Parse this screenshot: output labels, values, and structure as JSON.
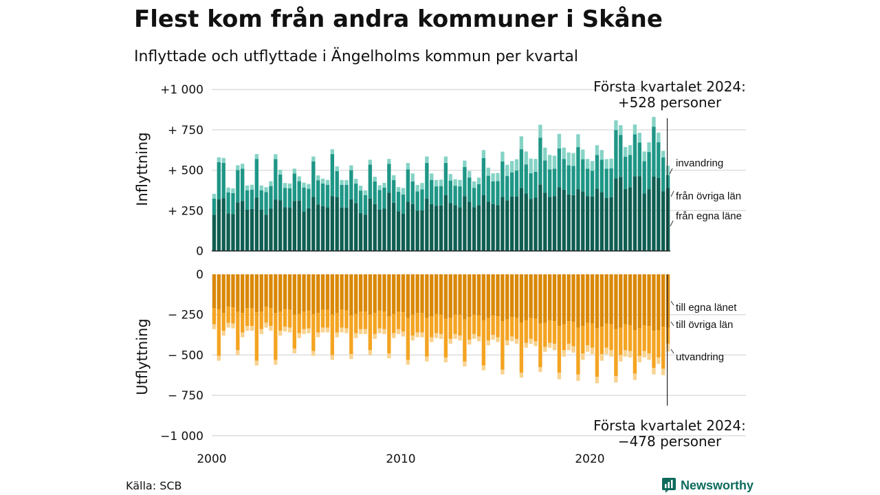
{
  "title": "Flest kom från andra kommuner i Skåne",
  "subtitle": "Inflyttade och utflyttade i Ängelholms kommun per kvartal",
  "source": "Källa: SCB",
  "brand": {
    "name": "Newsworthy",
    "icon": "newsworthy-logo-icon"
  },
  "colors": {
    "in_own": "#0f5e52",
    "in_other": "#1e9686",
    "in_immig": "#86d3c6",
    "out_own": "#d98807",
    "out_other": "#f4a422",
    "out_emig": "#f8d28f",
    "grid": "#dddddd",
    "text": "#111111"
  },
  "chart_data": {
    "type": "bar",
    "stacked": true,
    "x_start": [
      2000,
      1
    ],
    "x_ticks": [
      "2000",
      "2010",
      "2020"
    ],
    "grid": true,
    "top_panel": {
      "ylabel": "Inflyttning",
      "ylim": [
        0,
        1000
      ],
      "yticks": [
        "0",
        "+ 250",
        "+ 500",
        "+ 750",
        "+1 000"
      ],
      "annotation": [
        "Första kvartalet 2024:",
        "+528 personer"
      ],
      "series": [
        {
          "name": "från egna läne",
          "values": [
            224,
            320,
            326,
            233,
            228,
            301,
            310,
            256,
            260,
            330,
            256,
            225,
            262,
            319,
            313,
            271,
            268,
            310,
            312,
            243,
            265,
            335,
            288,
            278,
            270,
            340,
            334,
            269,
            269,
            320,
            297,
            234,
            225,
            325,
            290,
            257,
            262,
            360,
            299,
            246,
            230,
            305,
            290,
            249,
            251,
            325,
            290,
            280,
            282,
            345,
            296,
            284,
            270,
            340,
            305,
            271,
            284,
            345,
            306,
            291,
            283,
            335,
            314,
            337,
            338,
            390,
            356,
            322,
            330,
            412,
            360,
            335,
            340,
            395,
            380,
            350,
            346,
            383,
            368,
            340,
            337,
            385,
            365,
            329,
            332,
            449,
            459,
            384,
            395,
            463,
            462,
            356,
            383,
            460,
            453,
            370,
            390
          ]
        },
        {
          "name": "från övriga län",
          "values": [
            100,
            230,
            220,
            130,
            130,
            200,
            200,
            120,
            120,
            240,
            120,
            140,
            140,
            250,
            160,
            120,
            120,
            170,
            120,
            150,
            120,
            220,
            150,
            140,
            140,
            260,
            160,
            140,
            140,
            180,
            120,
            140,
            120,
            210,
            140,
            120,
            130,
            180,
            140,
            120,
            120,
            200,
            140,
            120,
            130,
            220,
            150,
            120,
            120,
            200,
            140,
            120,
            130,
            180,
            150,
            120,
            130,
            230,
            160,
            140,
            150,
            220,
            150,
            150,
            160,
            240,
            180,
            160,
            160,
            290,
            200,
            170,
            170,
            240,
            190,
            180,
            180,
            260,
            200,
            170,
            160,
            210,
            200,
            180,
            180,
            300,
            260,
            200,
            200,
            260,
            210,
            200,
            230,
            310,
            220,
            210,
            80
          ]
        },
        {
          "name": "invandring",
          "values": [
            30,
            30,
            30,
            30,
            30,
            30,
            30,
            30,
            30,
            30,
            30,
            30,
            30,
            30,
            30,
            30,
            30,
            30,
            30,
            30,
            30,
            30,
            30,
            30,
            30,
            30,
            30,
            30,
            30,
            30,
            30,
            30,
            30,
            30,
            30,
            30,
            30,
            30,
            30,
            30,
            40,
            40,
            50,
            40,
            40,
            40,
            40,
            40,
            40,
            40,
            40,
            40,
            40,
            40,
            40,
            40,
            40,
            50,
            50,
            50,
            50,
            60,
            70,
            70,
            70,
            80,
            80,
            90,
            80,
            80,
            80,
            90,
            80,
            90,
            70,
            80,
            80,
            80,
            60,
            60,
            60,
            60,
            60,
            60,
            60,
            60,
            60,
            60,
            60,
            60,
            60,
            60,
            60,
            60,
            60,
            40,
            58
          ]
        }
      ]
    },
    "bottom_panel": {
      "ylabel": "Utflyttning",
      "ylim": [
        -1000,
        0
      ],
      "yticks": [
        "0",
        "− 250",
        "− 500",
        "− 750",
        "−1 000"
      ],
      "annotation": [
        "Första kvartalet 2024:",
        "−478 personer"
      ],
      "series": [
        {
          "name": "till egna länet",
          "values": [
            -210,
            -215,
            -240,
            -200,
            -205,
            -230,
            -240,
            -210,
            -210,
            -235,
            -230,
            -200,
            -210,
            -240,
            -230,
            -215,
            -220,
            -250,
            -245,
            -230,
            -225,
            -245,
            -240,
            -220,
            -220,
            -250,
            -240,
            -220,
            -225,
            -255,
            -245,
            -230,
            -230,
            -250,
            -240,
            -225,
            -230,
            -260,
            -245,
            -230,
            -235,
            -270,
            -250,
            -240,
            -240,
            -270,
            -260,
            -245,
            -250,
            -275,
            -270,
            -250,
            -250,
            -280,
            -265,
            -250,
            -255,
            -285,
            -270,
            -255,
            -260,
            -290,
            -280,
            -265,
            -270,
            -300,
            -285,
            -270,
            -275,
            -305,
            -300,
            -285,
            -290,
            -320,
            -310,
            -290,
            -295,
            -330,
            -320,
            -300,
            -305,
            -335,
            -325,
            -305,
            -310,
            -340,
            -330,
            -310,
            -315,
            -345,
            -335,
            -315,
            -320,
            -350,
            -345,
            -325,
            -330
          ]
        },
        {
          "name": "till övriga län",
          "values": [
            -100,
            -290,
            -110,
            -100,
            -100,
            -240,
            -120,
            -110,
            -110,
            -300,
            -110,
            -100,
            -110,
            -290,
            -120,
            -110,
            -110,
            -210,
            -120,
            -110,
            -110,
            -230,
            -120,
            -110,
            -110,
            -250,
            -120,
            -110,
            -110,
            -240,
            -120,
            -110,
            -110,
            -220,
            -130,
            -110,
            -110,
            -230,
            -120,
            -110,
            -120,
            -260,
            -130,
            -120,
            -120,
            -240,
            -130,
            -120,
            -120,
            -240,
            -130,
            -120,
            -130,
            -260,
            -140,
            -120,
            -130,
            -280,
            -140,
            -120,
            -130,
            -300,
            -130,
            -120,
            -130,
            -310,
            -140,
            -130,
            -140,
            -270,
            -150,
            -140,
            -140,
            -290,
            -160,
            -140,
            -150,
            -290,
            -170,
            -140,
            -150,
            -300,
            -170,
            -150,
            -160,
            -290,
            -170,
            -160,
            -160,
            -270,
            -170,
            -160,
            -170,
            -230,
            -170,
            -260,
            -100
          ]
        },
        {
          "name": "utvandring",
          "values": [
            -30,
            -30,
            -30,
            -30,
            -30,
            -30,
            -30,
            -30,
            -30,
            -30,
            -30,
            -30,
            -30,
            -30,
            -30,
            -30,
            -30,
            -30,
            -30,
            -30,
            -30,
            -30,
            -30,
            -30,
            -30,
            -30,
            -30,
            -30,
            -30,
            -30,
            -30,
            -30,
            -30,
            -30,
            -30,
            -30,
            -30,
            -30,
            -30,
            -30,
            -30,
            -30,
            -30,
            -30,
            -30,
            -30,
            -30,
            -30,
            -30,
            -30,
            -30,
            -30,
            -30,
            -30,
            -30,
            -30,
            -30,
            -30,
            -30,
            -30,
            -30,
            -30,
            -30,
            -30,
            -30,
            -30,
            -30,
            -30,
            -30,
            -30,
            -30,
            -30,
            -40,
            -40,
            -40,
            -40,
            -40,
            -40,
            -40,
            -40,
            -40,
            -40,
            -40,
            -40,
            -40,
            -40,
            -40,
            -40,
            -40,
            -40,
            -40,
            -40,
            -40,
            -40,
            -40,
            -40,
            -48
          ]
        }
      ]
    }
  }
}
